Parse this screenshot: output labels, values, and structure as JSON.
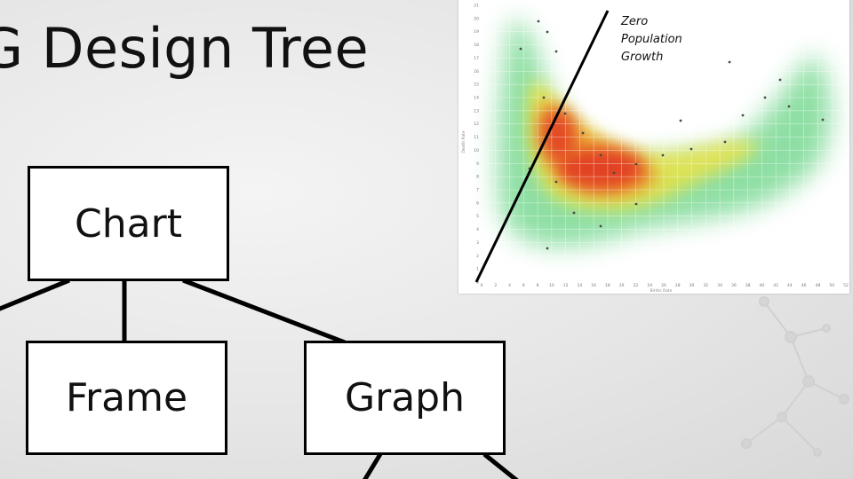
{
  "slide": {
    "title": "G Design Tree"
  },
  "tree": {
    "nodes": {
      "chart": "Chart",
      "frame": "Frame",
      "graph": "Graph"
    }
  },
  "chart_data": {
    "type": "heatmap",
    "title": "",
    "xlabel": "Births Rate",
    "ylabel": "Death Rate",
    "annotation": "Zero Population Growth",
    "xlim": [
      0,
      52
    ],
    "ylim": [
      0,
      21
    ],
    "x_ticks": [
      "0",
      "2",
      "4",
      "6",
      "8",
      "10",
      "12",
      "14",
      "16",
      "18",
      "20",
      "22",
      "24",
      "26",
      "28",
      "30",
      "32",
      "34",
      "36",
      "38",
      "40",
      "42",
      "44",
      "46",
      "48",
      "50",
      "52"
    ],
    "y_ticks": [
      "0",
      "1",
      "2",
      "3",
      "4",
      "5",
      "6",
      "7",
      "8",
      "9",
      "10",
      "11",
      "12",
      "13",
      "14",
      "15",
      "16",
      "17",
      "18",
      "19",
      "20",
      "21"
    ],
    "grid": true,
    "density_colors": [
      "#1fbf4a",
      "#f3e23a",
      "#f39a2a",
      "#e03020"
    ]
  },
  "colors": {
    "background": "#e6e6e6",
    "node_border": "#000000"
  }
}
